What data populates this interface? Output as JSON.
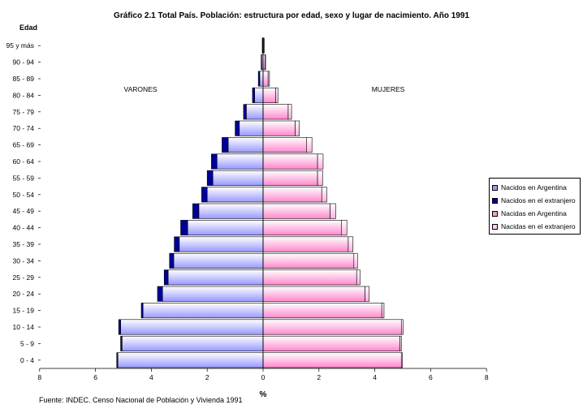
{
  "title": "Gráfico 2.1 Total País. Población: estructura por edad, sexo y lugar de nacimiento. Año 1991",
  "source": "Fuente: INDEC. Censo Nacional de Población y Vivienda 1991",
  "chart_data": {
    "type": "bar",
    "orientation": "horizontal-population-pyramid",
    "ylabel": "Edad",
    "xlabel": "%",
    "xlim": [
      -8,
      8
    ],
    "x_ticks": [
      -8,
      -6,
      -4,
      -2,
      0,
      2,
      4,
      6,
      8
    ],
    "x_tick_labels": [
      "8",
      "6",
      "4",
      "2",
      "0",
      "2",
      "4",
      "6",
      "8"
    ],
    "categories": [
      "0 - 4",
      "5 - 9",
      "10 - 14",
      "15 - 19",
      "20 - 24",
      "25 - 29",
      "30 - 34",
      "35 - 39",
      "40 - 44",
      "45 - 49",
      "50 - 54",
      "55 - 59",
      "60 - 64",
      "65 - 69",
      "70 - 74",
      "75 - 79",
      "80 - 84",
      "85 - 89",
      "90 - 94",
      "95 y más"
    ],
    "annotations": {
      "left": "VARONES",
      "right": "MUJERES"
    },
    "legend_position": "right",
    "series": [
      {
        "name": "Nacidos en Argentina",
        "side": "left",
        "color": "#9999ff",
        "values": [
          5.2,
          5.05,
          5.1,
          4.3,
          3.6,
          3.4,
          3.2,
          3.0,
          2.7,
          2.3,
          2.0,
          1.8,
          1.65,
          1.25,
          0.85,
          0.6,
          0.3,
          0.12,
          0.05,
          0.02
        ]
      },
      {
        "name": "Nacidos en el extranjero",
        "side": "left",
        "color": "#000099",
        "values": [
          0.04,
          0.05,
          0.07,
          0.06,
          0.18,
          0.14,
          0.15,
          0.18,
          0.25,
          0.22,
          0.2,
          0.2,
          0.2,
          0.22,
          0.15,
          0.1,
          0.08,
          0.05,
          0.02,
          0.01
        ]
      },
      {
        "name": "Nacidas en Argentina",
        "side": "right",
        "color": "#ff99cc",
        "values": [
          4.95,
          4.9,
          4.95,
          4.25,
          3.65,
          3.35,
          3.25,
          3.05,
          2.8,
          2.4,
          2.1,
          1.95,
          1.95,
          1.55,
          1.15,
          0.9,
          0.45,
          0.18,
          0.07,
          0.03
        ]
      },
      {
        "name": "Nacidas en el extranjero",
        "side": "right",
        "color": "#ffccff",
        "values": [
          0.04,
          0.05,
          0.06,
          0.08,
          0.15,
          0.12,
          0.13,
          0.17,
          0.2,
          0.2,
          0.18,
          0.18,
          0.2,
          0.2,
          0.15,
          0.12,
          0.08,
          0.05,
          0.02,
          0.01
        ]
      }
    ]
  }
}
